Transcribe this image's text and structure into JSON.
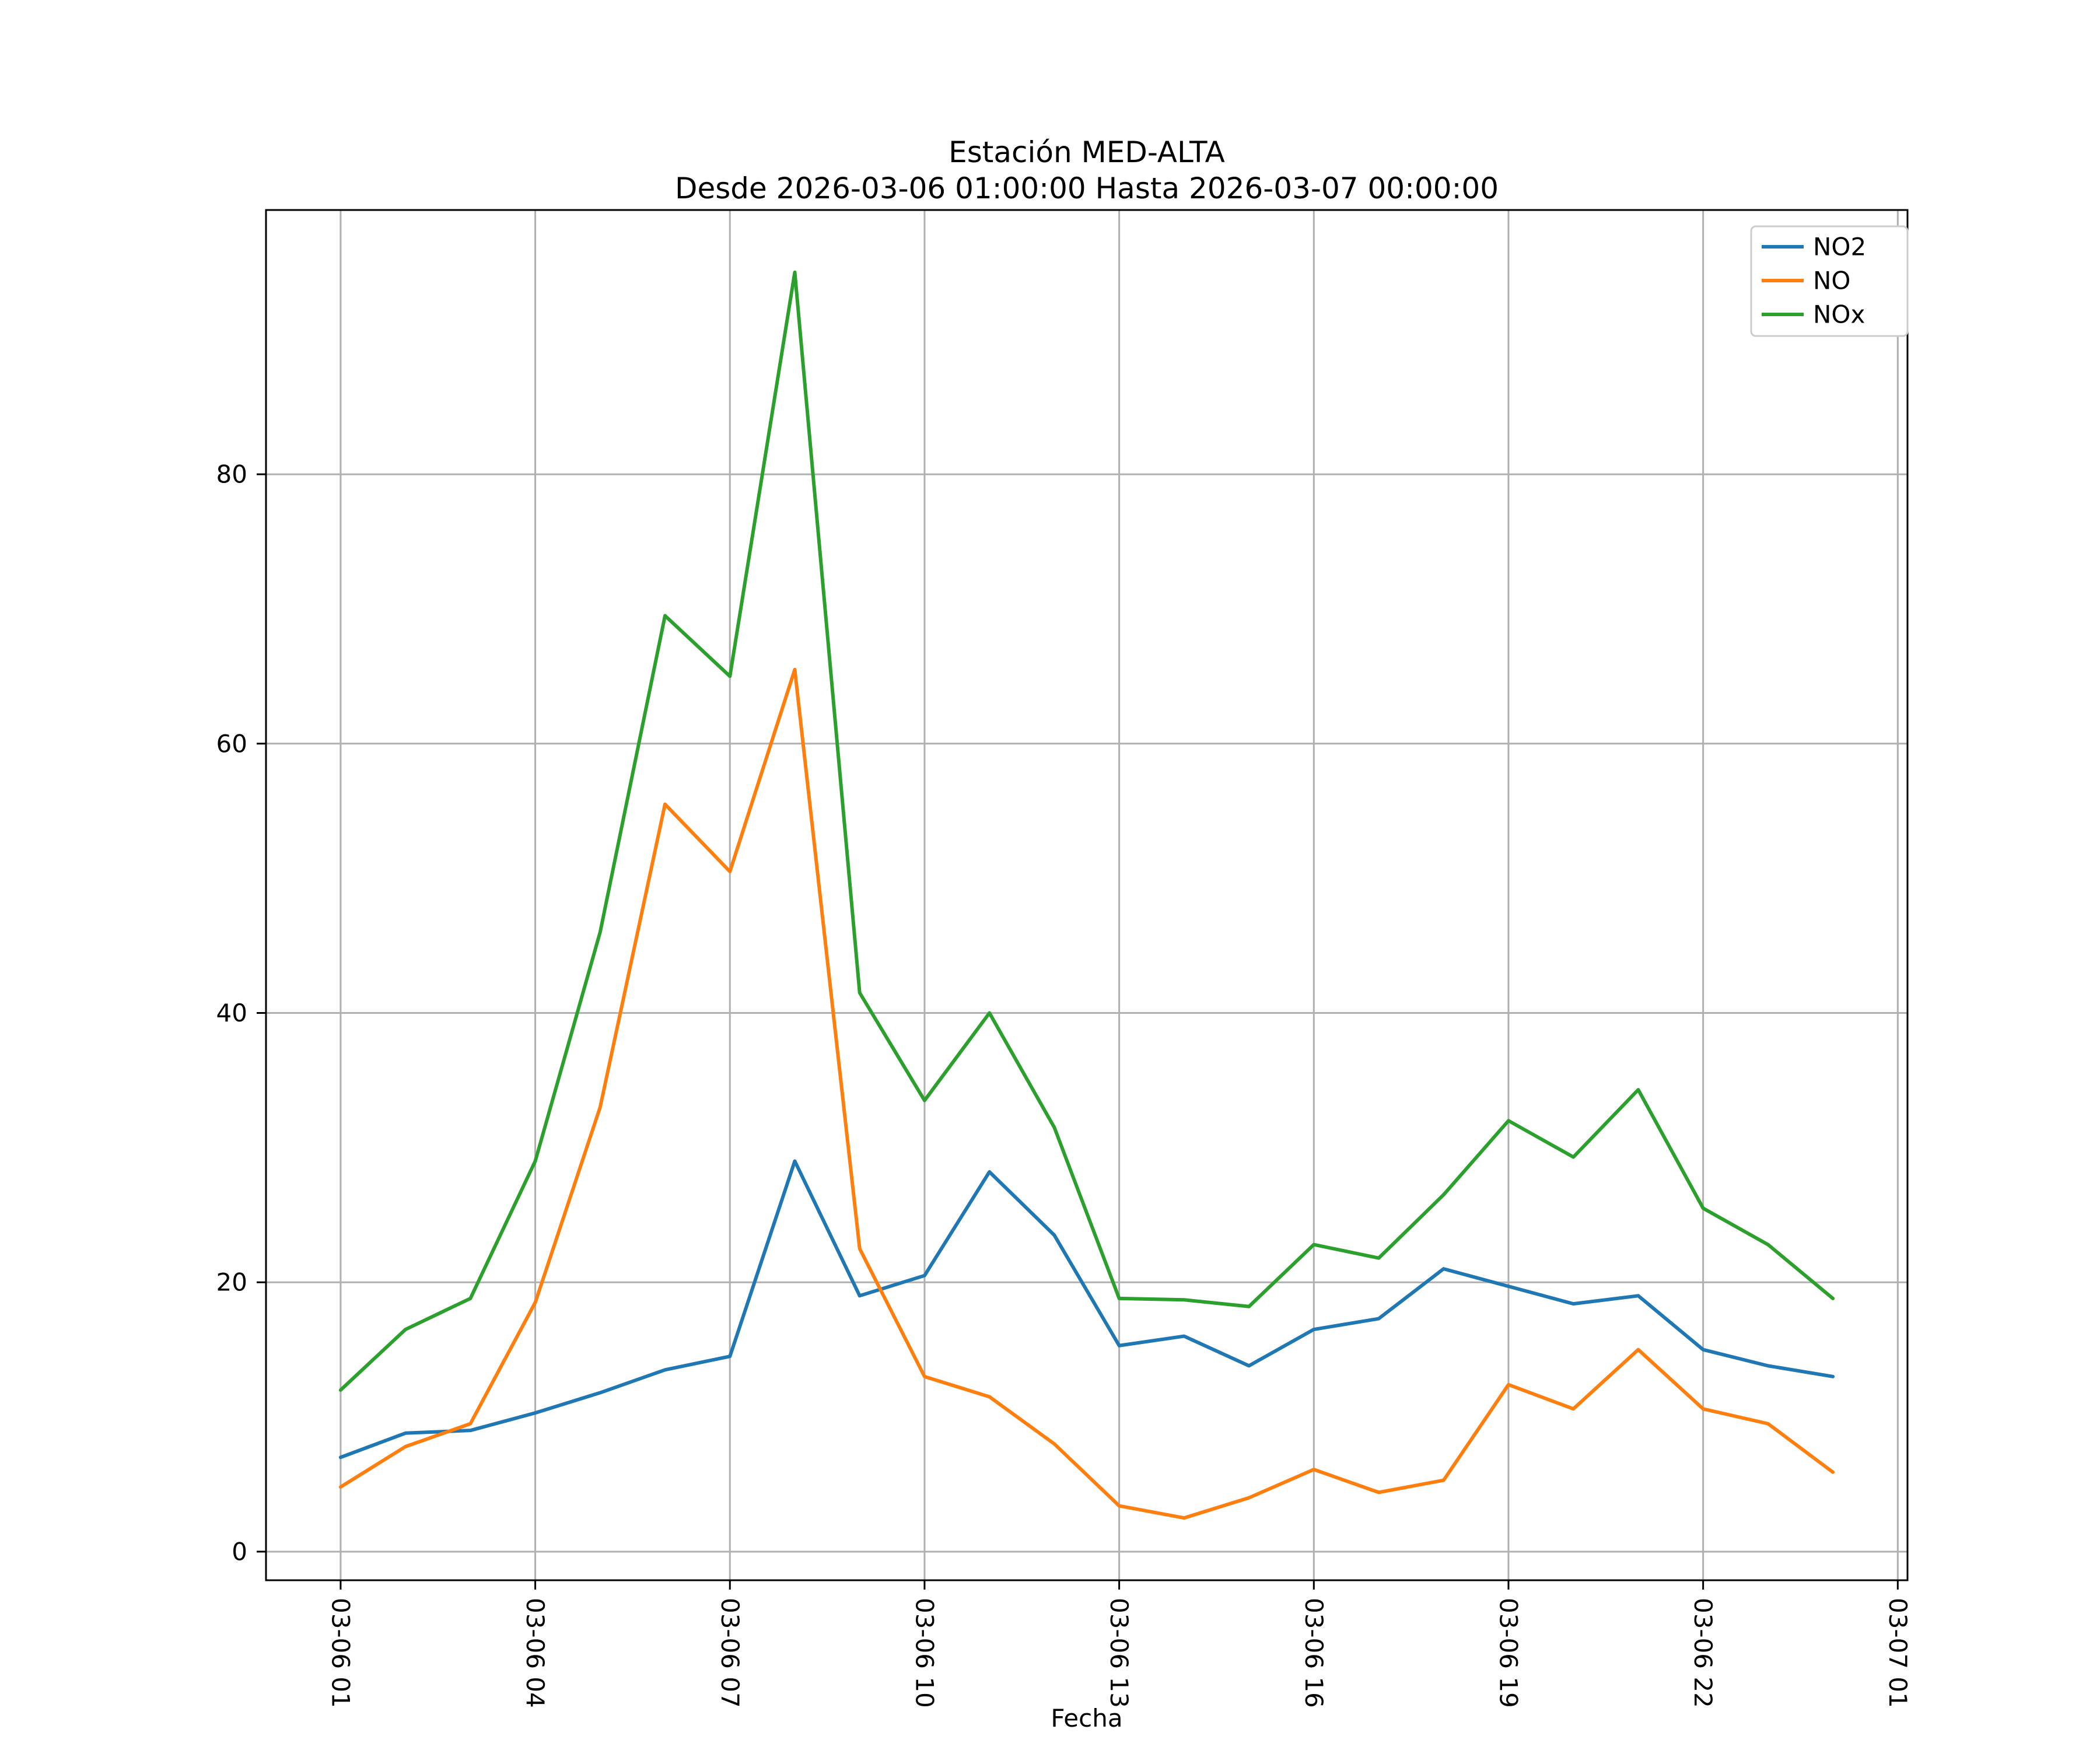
{
  "chart_data": {
    "type": "line",
    "title": "Estación MED-ALTA",
    "subtitle": "Desde 2026-03-06 01:00:00 Hasta 2026-03-07 00:00:00",
    "xlabel": "Fecha",
    "ylabel": "",
    "grid": true,
    "legend_position": "upper right",
    "grid_color": "#b0b0b0",
    "background": "#ffffff",
    "x_hours": [
      1,
      2,
      3,
      4,
      5,
      6,
      7,
      8,
      9,
      10,
      11,
      12,
      13,
      14,
      15,
      16,
      17,
      18,
      19,
      20,
      21,
      22,
      23,
      24
    ],
    "series": [
      {
        "name": "NO2",
        "color": "#1f77b4",
        "values": [
          7.0,
          8.8,
          9.0,
          10.3,
          11.8,
          13.5,
          14.5,
          29.0,
          19.0,
          20.5,
          28.2,
          23.5,
          15.3,
          16.0,
          13.8,
          16.5,
          17.3,
          21.0,
          19.7,
          18.4,
          19.0,
          15.0,
          13.8,
          13.0
        ]
      },
      {
        "name": "NO",
        "color": "#ff7f0e",
        "values": [
          4.8,
          7.8,
          9.5,
          18.5,
          33.0,
          55.5,
          50.5,
          65.5,
          22.5,
          13.0,
          11.5,
          8.0,
          3.4,
          2.5,
          4.0,
          6.1,
          4.4,
          5.3,
          12.4,
          10.6,
          15.0,
          10.6,
          9.5,
          5.9
        ]
      },
      {
        "name": "NOx",
        "color": "#2ca02c",
        "values": [
          12.0,
          16.5,
          18.8,
          29.0,
          46.0,
          69.5,
          65.0,
          95.0,
          41.5,
          33.5,
          40.0,
          31.5,
          18.8,
          18.7,
          18.2,
          22.8,
          21.8,
          26.5,
          32.0,
          29.3,
          34.3,
          25.5,
          22.8,
          18.8
        ]
      }
    ],
    "xticks": [
      {
        "hour": 1,
        "label": "03-06 01"
      },
      {
        "hour": 4,
        "label": "03-06 04"
      },
      {
        "hour": 7,
        "label": "03-06 07"
      },
      {
        "hour": 10,
        "label": "03-06 10"
      },
      {
        "hour": 13,
        "label": "03-06 13"
      },
      {
        "hour": 16,
        "label": "03-06 16"
      },
      {
        "hour": 19,
        "label": "03-06 19"
      },
      {
        "hour": 22,
        "label": "03-06 22"
      },
      {
        "hour": 25,
        "label": "03-07 01"
      }
    ],
    "yticks": [
      0,
      20,
      40,
      60,
      80
    ],
    "xlim_hours": [
      -0.15,
      25.15
    ],
    "ylim": [
      -2.125,
      99.625
    ]
  }
}
